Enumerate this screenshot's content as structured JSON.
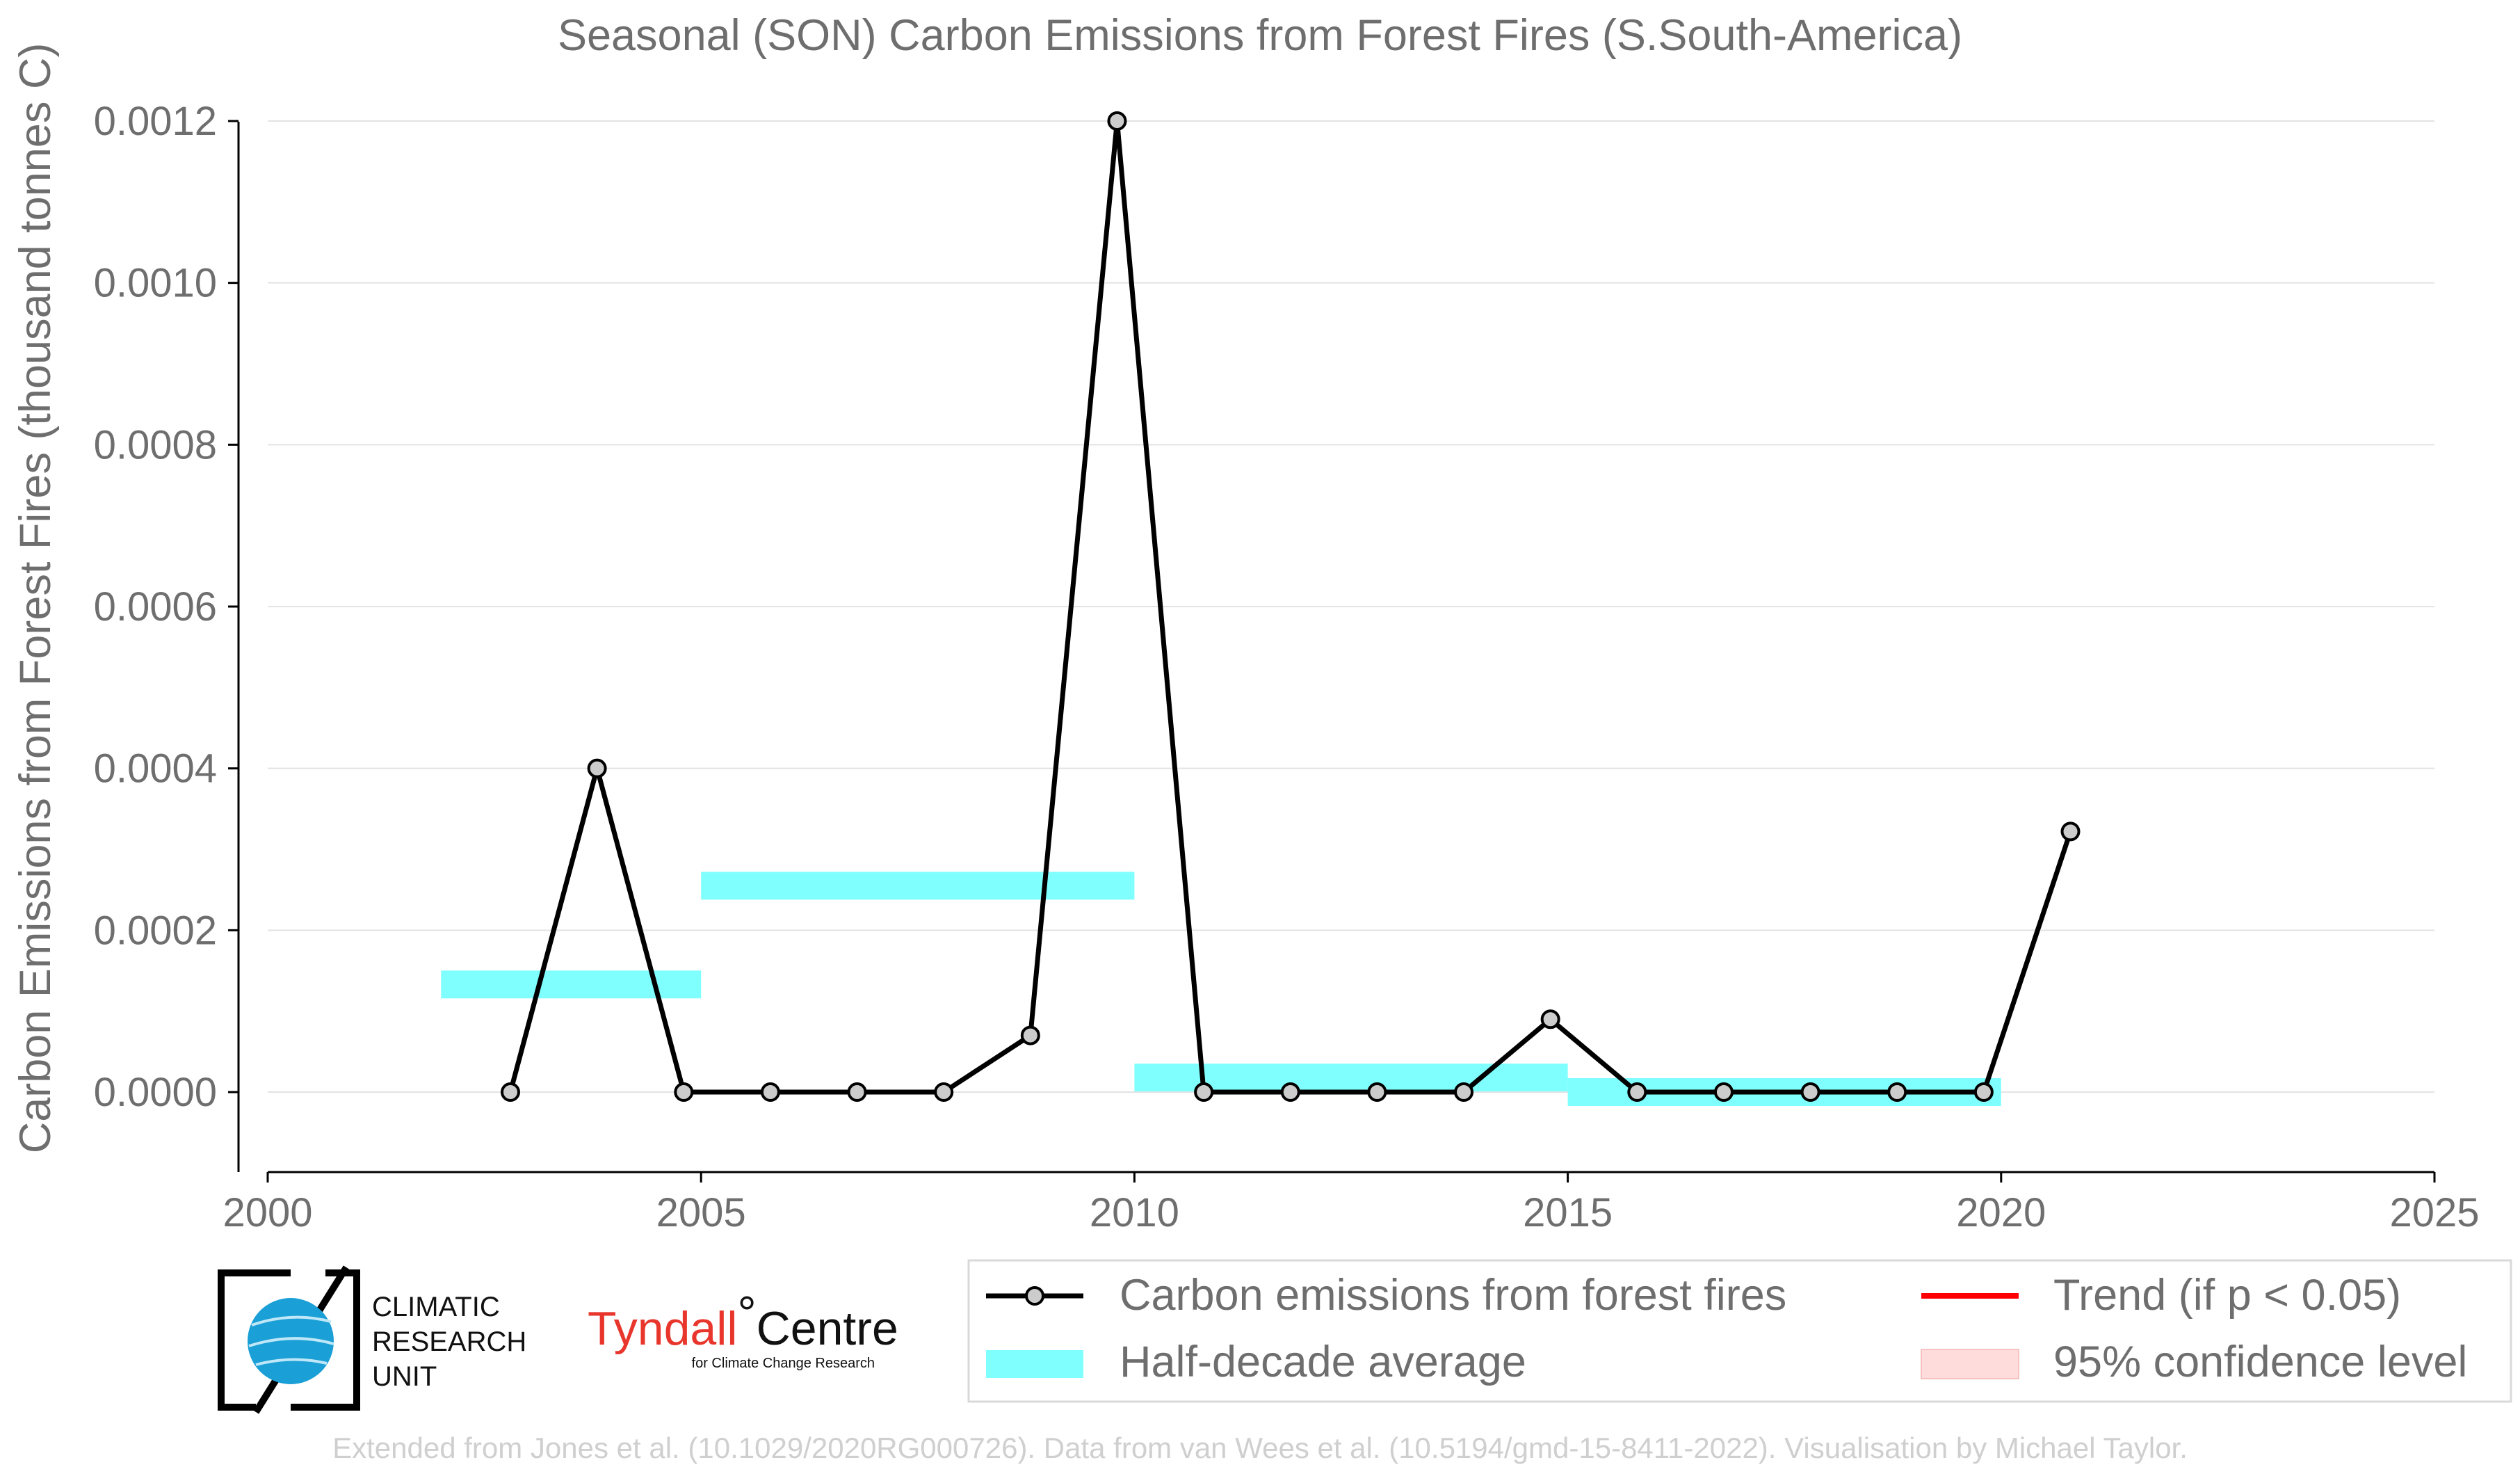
{
  "chart_data": {
    "type": "line",
    "title": "Seasonal (SON) Carbon Emissions from Forest Fires (S.South-America)",
    "ylabel": "Carbon Emissions from Forest Fires (thousand tonnes C)",
    "xlabel": "",
    "xlim": [
      2000,
      2025
    ],
    "ylim": [
      -9e-05,
      0.00122
    ],
    "x_ticks": [
      2000,
      2005,
      2010,
      2015,
      2020,
      2025
    ],
    "y_ticks": [
      0.0,
      0.0002,
      0.0004,
      0.0006,
      0.0008,
      0.001,
      0.0012
    ],
    "y_tick_labels": [
      "0.0000",
      "0.0002",
      "0.0004",
      "0.0006",
      "0.0008",
      "0.0010",
      "0.0012"
    ],
    "x_tick_labels": [
      "2000",
      "2005",
      "2010",
      "2015",
      "2020",
      "2025"
    ],
    "grid": true,
    "legend_position": "bottom-right",
    "series": [
      {
        "name": "Carbon emissions from forest fires",
        "color": "#000000",
        "marker_fill": "#cccccc",
        "x": [
          2002.8,
          2003.8,
          2004.8,
          2005.8,
          2006.8,
          2007.8,
          2008.8,
          2009.8,
          2010.8,
          2011.8,
          2012.8,
          2013.8,
          2014.8,
          2015.8,
          2016.8,
          2017.8,
          2018.8,
          2019.8,
          2020.8
        ],
        "y": [
          0.0,
          0.0004,
          0.0,
          0.0,
          0.0,
          0.0,
          7e-05,
          0.0012,
          0.0,
          0.0,
          0.0,
          0.0,
          9e-05,
          0.0,
          0.0,
          0.0,
          0.0,
          0.0,
          0.000322
        ]
      },
      {
        "name": "Half-decade average",
        "color": "#80ffff",
        "segments": [
          {
            "x_start": 2002,
            "x_end": 2005,
            "value": 0.000133
          },
          {
            "x_start": 2005,
            "x_end": 2010,
            "value": 0.000255
          },
          {
            "x_start": 2010,
            "x_end": 2015,
            "value": 1.8e-05
          },
          {
            "x_start": 2015,
            "x_end": 2020,
            "value": 0.0
          }
        ]
      }
    ],
    "legend": [
      {
        "label": "Carbon emissions from forest fires",
        "kind": "line-marker",
        "color": "#000000"
      },
      {
        "label": "Trend (if p < 0.05)",
        "kind": "line",
        "color": "#ff0000"
      },
      {
        "label": "Half-decade average",
        "kind": "band",
        "color": "#80ffff"
      },
      {
        "label": "95% confidence level",
        "kind": "band",
        "color": "#ffdcdc"
      }
    ]
  },
  "logos": {
    "cru_lines": [
      "CLIMATIC",
      "RESEARCH",
      "UNIT"
    ],
    "tyndall_main": "Tyndall",
    "tyndall_deg": "°",
    "tyndall_centre": "Centre",
    "tyndall_sub": "for Climate Change Research"
  },
  "credit": "Extended from Jones et al. (10.1029/2020RG000726). Data from van Wees et al. (10.5194/gmd-15-8411-2022). Visualisation by Michael Taylor."
}
